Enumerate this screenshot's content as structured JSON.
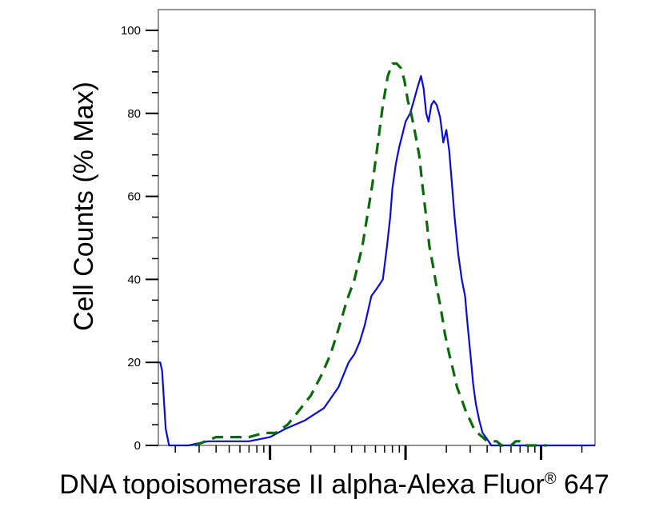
{
  "chart_data": {
    "type": "line",
    "title": "",
    "xlabel": "DNA topoisomerase II alpha-Alexa Fluor",
    "xlabel_reg": "®",
    "xlabel_suffix": " 647",
    "ylabel": "Cell Counts (% Max)",
    "x_scale": "log",
    "xlim": [
      15,
      25000
    ],
    "ylim": [
      0,
      105
    ],
    "y_ticks": [
      0,
      20,
      40,
      60,
      80,
      100
    ],
    "y_tick_labels": [
      "0",
      "20",
      "40",
      "60",
      "80",
      "100"
    ],
    "x_major_ticks": [
      100,
      1000,
      10000
    ],
    "grid": false,
    "colors": {
      "solid": "#0b0bd6",
      "dashed": "#0a6a0a"
    },
    "series": [
      {
        "style": "solid",
        "color": "#0b0bd6",
        "x": [
          15,
          15.5,
          16,
          16.4,
          17,
          18,
          20,
          25,
          35,
          50,
          70,
          100,
          130,
          180,
          250,
          320,
          380,
          420,
          460,
          500,
          560,
          620,
          680,
          730,
          770,
          800,
          850,
          900,
          950,
          1000,
          1080,
          1150,
          1220,
          1300,
          1360,
          1420,
          1480,
          1550,
          1620,
          1700,
          1800,
          1900,
          2000,
          2100,
          2200,
          2300,
          2450,
          2600,
          2750,
          2850,
          2950,
          3050,
          3150,
          3300,
          3500,
          3700,
          3900,
          4100,
          4300,
          4500,
          4700,
          4900,
          5100,
          5300,
          5500,
          5700,
          6000,
          6300,
          6600,
          7000,
          7500,
          8000,
          8500,
          9000,
          9500,
          10000,
          10500,
          11000,
          12000,
          13000,
          15000,
          20000,
          25000
        ],
        "y": [
          20,
          20,
          18,
          12,
          4,
          0,
          0,
          0,
          1,
          1,
          1,
          2,
          4,
          6,
          9,
          14,
          20,
          22,
          25,
          29,
          36,
          38,
          40,
          48,
          55,
          62,
          68,
          72,
          75,
          78,
          80,
          83,
          86,
          89,
          86,
          80,
          78,
          82,
          83,
          82,
          79,
          73,
          76,
          71,
          63,
          55,
          46,
          40,
          36,
          30,
          25,
          20,
          15,
          10,
          6,
          3,
          2,
          1,
          0,
          0,
          0,
          0,
          0,
          0,
          0,
          0,
          0,
          0,
          0,
          0,
          0,
          0,
          0,
          0,
          0,
          0,
          0,
          0,
          0,
          0,
          0,
          0,
          0
        ]
      },
      {
        "style": "dashed",
        "color": "#0a6a0a",
        "x": [
          28,
          40,
          55,
          70,
          90,
          110,
          135,
          160,
          200,
          240,
          280,
          320,
          370,
          420,
          480,
          520,
          570,
          620,
          680,
          740,
          800,
          860,
          920,
          980,
          1040,
          1100,
          1180,
          1260,
          1340,
          1420,
          1500,
          1600,
          1700,
          1820,
          1950,
          2100,
          2250,
          2400,
          2600,
          2800,
          3000,
          3200,
          3400,
          3700,
          4000,
          4300,
          4700,
          5100,
          5500,
          6000,
          6500,
          7000,
          7500,
          8000,
          9000,
          10000,
          11000
        ],
        "y": [
          0,
          2,
          2,
          2,
          3,
          3,
          5,
          8,
          12,
          17,
          22,
          28,
          35,
          40,
          48,
          55,
          63,
          72,
          82,
          89,
          92,
          92,
          91,
          88,
          83,
          80,
          75,
          70,
          62,
          55,
          48,
          43,
          38,
          33,
          27,
          22,
          18,
          14,
          11,
          8,
          6,
          4,
          3,
          2,
          1,
          1,
          1,
          0,
          0,
          0,
          1,
          1,
          0,
          0,
          0,
          0,
          0
        ]
      }
    ]
  }
}
